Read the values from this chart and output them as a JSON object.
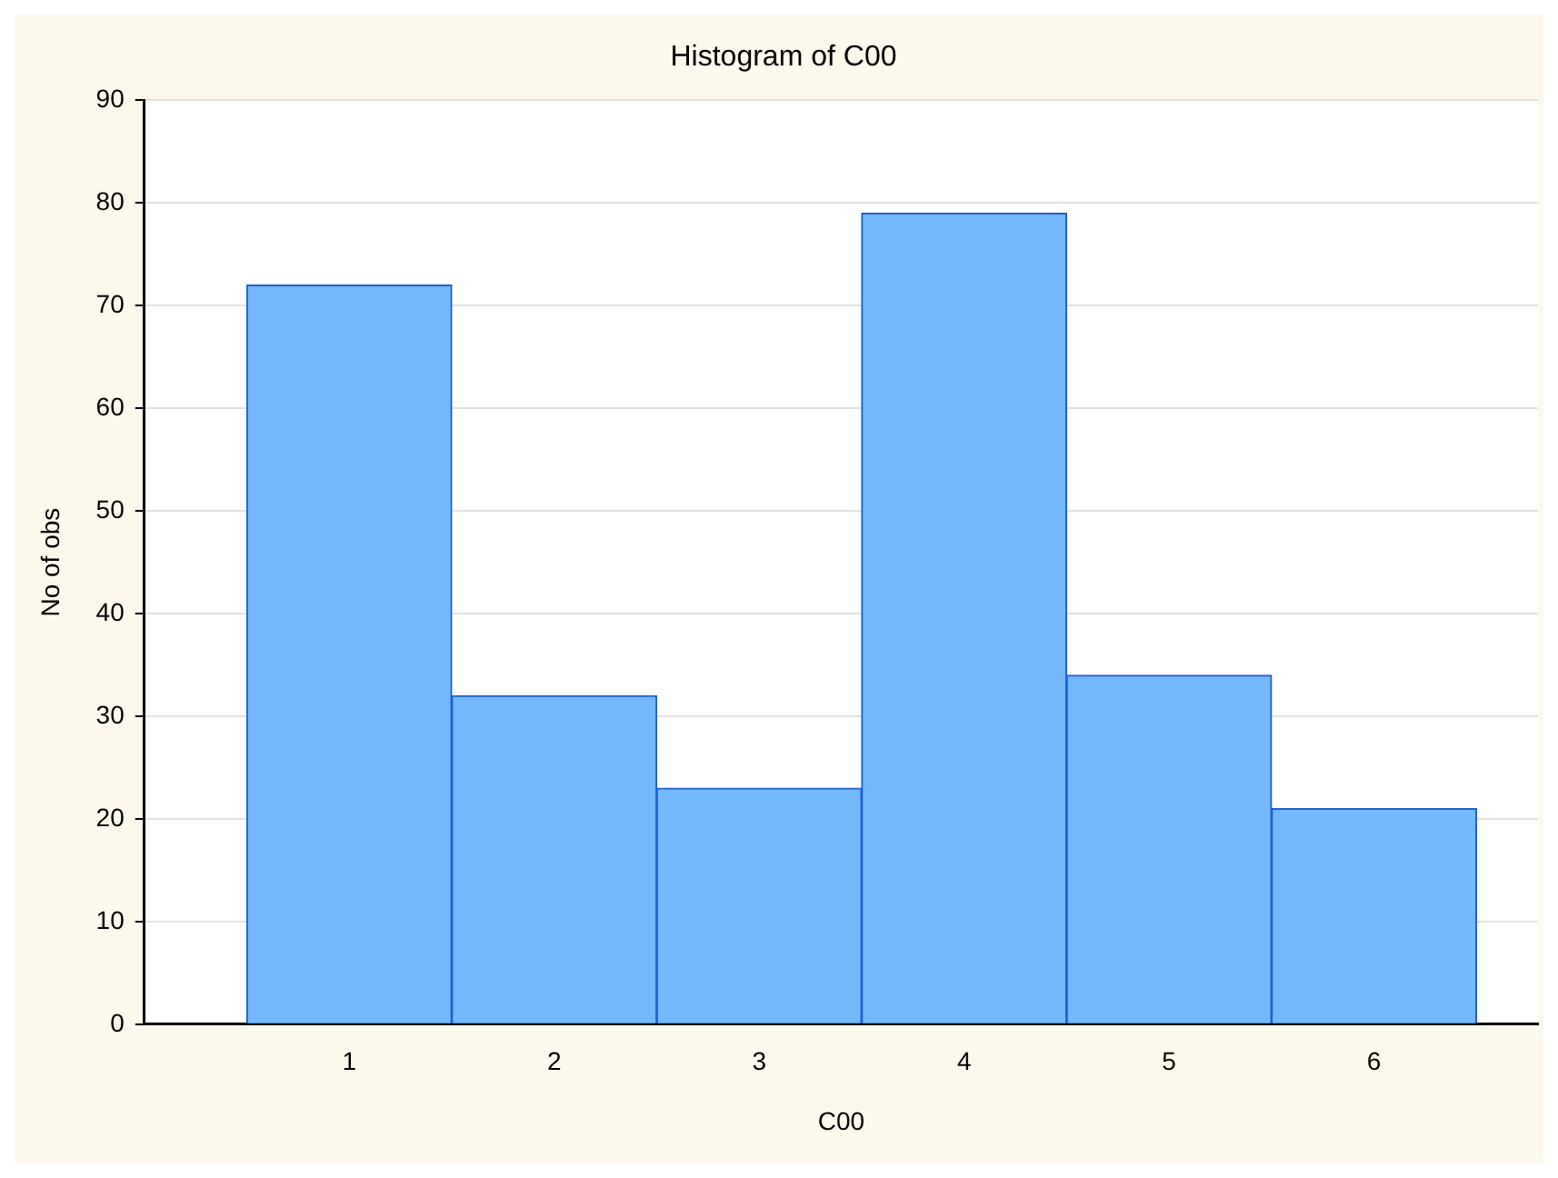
{
  "chart_data": {
    "type": "histogram",
    "title": "Histogram of C00",
    "xlabel": "C00",
    "ylabel": "No of obs",
    "bins": [
      0.5,
      1.5,
      2.5,
      3.5,
      4.5,
      5.5,
      6.5
    ],
    "values": [
      72,
      32,
      23,
      79,
      34,
      21
    ],
    "color": "#74b8fc",
    "xlim": [
      0,
      6.8
    ],
    "xticks": [
      1,
      2,
      3,
      4,
      5,
      6
    ],
    "ylim": [
      0,
      90
    ],
    "yticks": [
      0,
      10,
      20,
      30,
      40,
      50,
      60,
      70,
      80,
      90
    ],
    "grid": "y",
    "legend": false
  }
}
